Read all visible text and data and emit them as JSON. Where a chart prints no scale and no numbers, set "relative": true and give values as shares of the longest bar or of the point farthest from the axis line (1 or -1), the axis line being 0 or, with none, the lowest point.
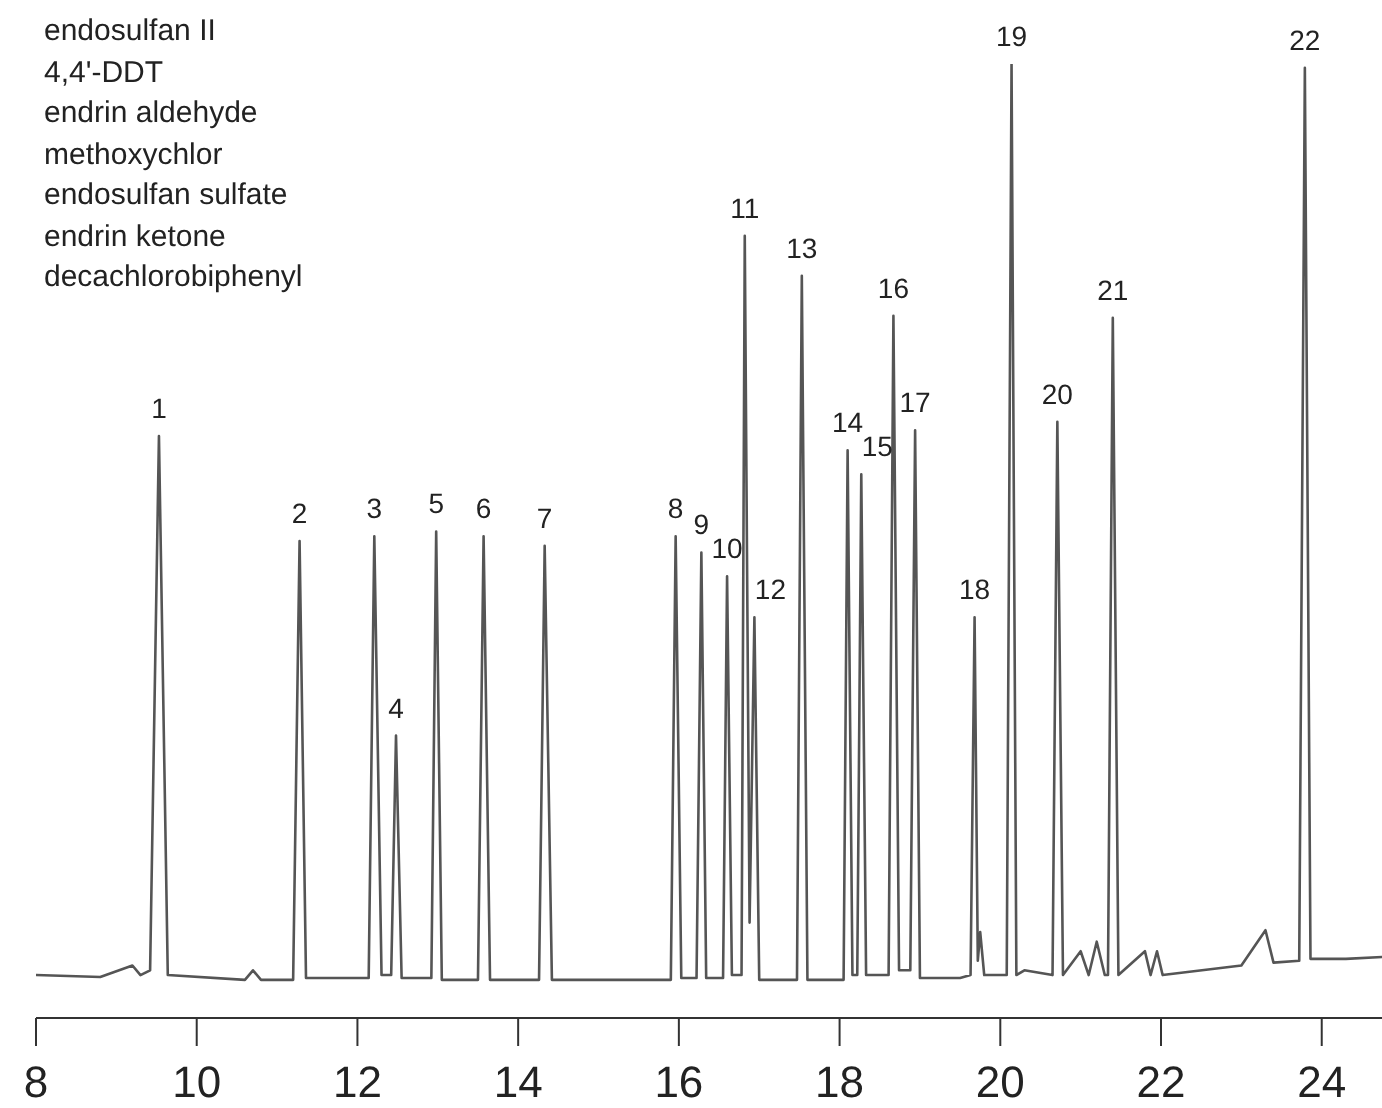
{
  "chart_data": {
    "type": "line",
    "relative": true,
    "color": "#555555",
    "x": [
      8.0,
      8.8,
      9.2,
      9.3,
      9.42,
      9.53,
      9.64,
      10.6,
      10.7,
      10.8,
      11.2,
      11.28,
      11.36,
      12.14,
      12.21,
      12.3,
      12.42,
      12.48,
      12.55,
      12.92,
      12.98,
      13.05,
      13.5,
      13.57,
      13.65,
      14.26,
      14.33,
      14.42,
      15.9,
      15.96,
      16.03,
      16.22,
      16.28,
      16.34,
      16.55,
      16.6,
      16.66,
      16.78,
      16.82,
      16.88,
      16.94,
      17.0,
      17.47,
      17.53,
      17.6,
      18.05,
      18.1,
      18.16,
      18.22,
      18.27,
      18.33,
      18.61,
      18.67,
      18.74,
      18.88,
      18.94,
      19.0,
      19.5,
      19.63,
      19.68,
      19.72,
      19.75,
      19.8,
      20.08,
      20.14,
      20.2,
      20.3,
      20.65,
      20.71,
      20.78,
      21.0,
      21.1,
      21.2,
      21.3,
      21.34,
      21.4,
      21.47,
      21.8,
      21.87,
      21.95,
      22.02,
      23.0,
      23.3,
      23.4,
      23.72,
      23.79,
      23.86,
      24.3,
      24.75
    ],
    "values": [
      0.045,
      0.043,
      0.055,
      0.045,
      0.05,
      0.61,
      0.045,
      0.04,
      0.05,
      0.04,
      0.04,
      0.5,
      0.042,
      0.042,
      0.505,
      0.045,
      0.045,
      0.296,
      0.042,
      0.042,
      0.51,
      0.04,
      0.04,
      0.505,
      0.04,
      0.04,
      0.495,
      0.04,
      0.04,
      0.505,
      0.042,
      0.042,
      0.488,
      0.042,
      0.042,
      0.463,
      0.045,
      0.045,
      0.82,
      0.1,
      0.42,
      0.04,
      0.04,
      0.778,
      0.04,
      0.04,
      0.595,
      0.045,
      0.045,
      0.57,
      0.045,
      0.045,
      0.736,
      0.05,
      0.05,
      0.616,
      0.042,
      0.042,
      0.045,
      0.42,
      0.06,
      0.09,
      0.045,
      0.045,
      1.0,
      0.045,
      0.05,
      0.045,
      0.625,
      0.045,
      0.07,
      0.045,
      0.08,
      0.045,
      0.045,
      0.734,
      0.045,
      0.07,
      0.045,
      0.07,
      0.045,
      0.055,
      0.092,
      0.058,
      0.06,
      0.996,
      0.062,
      0.062,
      0.064
    ],
    "xlim": [
      8.0,
      24.75
    ],
    "xticks": [
      8,
      10,
      12,
      14,
      16,
      18,
      20,
      22,
      24
    ],
    "grid": false,
    "legend": false,
    "marker": "none",
    "line_style": "solid",
    "annotations": [
      "endosulfan II",
      "4,4'-DDT",
      "endrin aldehyde",
      "methoxychlor",
      "endosulfan sulfate",
      "endrin ketone",
      "decachlorobiphenyl",
      {
        "text": "1",
        "x": 9.53,
        "y": 0.61
      },
      {
        "text": "2",
        "x": 11.28,
        "y": 0.5
      },
      {
        "text": "3",
        "x": 12.21,
        "y": 0.505
      },
      {
        "text": "4",
        "x": 12.48,
        "y": 0.296
      },
      {
        "text": "5",
        "x": 12.98,
        "y": 0.51
      },
      {
        "text": "6",
        "x": 13.57,
        "y": 0.505
      },
      {
        "text": "7",
        "x": 14.33,
        "y": 0.495
      },
      {
        "text": "8",
        "x": 15.96,
        "y": 0.505
      },
      {
        "text": "9",
        "x": 16.28,
        "y": 0.488
      },
      {
        "text": "10",
        "x": 16.6,
        "y": 0.463
      },
      {
        "text": "11",
        "x": 16.82,
        "y": 0.82
      },
      {
        "text": "12",
        "x": 16.94,
        "y": 0.42
      },
      {
        "text": "13",
        "x": 17.53,
        "y": 0.778
      },
      {
        "text": "14",
        "x": 18.1,
        "y": 0.595
      },
      {
        "text": "15",
        "x": 18.27,
        "y": 0.57
      },
      {
        "text": "16",
        "x": 18.67,
        "y": 0.736
      },
      {
        "text": "17",
        "x": 18.94,
        "y": 0.616
      },
      {
        "text": "18",
        "x": 19.68,
        "y": 0.42
      },
      {
        "text": "19",
        "x": 20.14,
        "y": 1.0
      },
      {
        "text": "20",
        "x": 20.71,
        "y": 0.625
      },
      {
        "text": "21",
        "x": 21.4,
        "y": 0.734
      },
      {
        "text": "22",
        "x": 23.79,
        "y": 0.996
      }
    ]
  }
}
